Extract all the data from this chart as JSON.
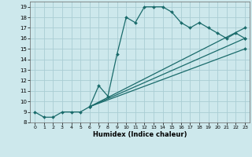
{
  "xlabel": "Humidex (Indice chaleur)",
  "background_color": "#cde8ec",
  "grid_color": "#aacdd4",
  "line_color": "#1a6b6b",
  "xlim": [
    -0.5,
    23.5
  ],
  "ylim": [
    8,
    19.5
  ],
  "yticks": [
    8,
    9,
    10,
    11,
    12,
    13,
    14,
    15,
    16,
    17,
    18,
    19
  ],
  "xticks": [
    0,
    1,
    2,
    3,
    4,
    5,
    6,
    7,
    8,
    9,
    10,
    11,
    12,
    13,
    14,
    15,
    16,
    17,
    18,
    19,
    20,
    21,
    22,
    23
  ],
  "series": [
    {
      "x": [
        0,
        1,
        2,
        3,
        4,
        5,
        6,
        7,
        8,
        9,
        10,
        11,
        12,
        13,
        14,
        15,
        16,
        17,
        18,
        19,
        20,
        21,
        22,
        23
      ],
      "y": [
        9.0,
        8.5,
        8.5,
        9.0,
        9.0,
        9.0,
        9.5,
        11.5,
        10.5,
        14.5,
        18.0,
        17.5,
        19.0,
        19.0,
        19.0,
        18.5,
        17.5,
        17.0,
        17.5,
        17.0,
        16.5,
        16.0,
        16.5,
        16.0
      ]
    },
    {
      "x": [
        6,
        23
      ],
      "y": [
        9.5,
        17.0
      ]
    },
    {
      "x": [
        6,
        23
      ],
      "y": [
        9.5,
        16.0
      ]
    },
    {
      "x": [
        6,
        23
      ],
      "y": [
        9.5,
        15.0
      ]
    }
  ]
}
